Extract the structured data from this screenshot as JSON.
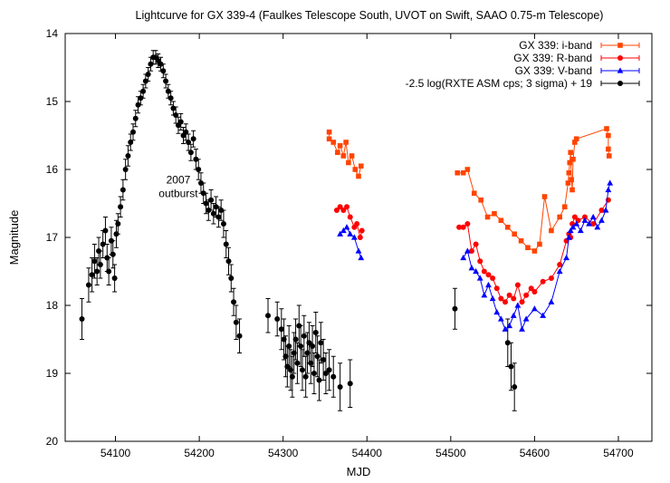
{
  "chart_data": {
    "type": "scatter",
    "title": "Lightcurve for GX 339-4 (Faulkes Telescope South, UVOT on Swift, SAAO 0.75-m Telescope)",
    "xlabel": "MJD",
    "ylabel": "Magnitude",
    "xlim": [
      54040,
      54740
    ],
    "ylim": [
      20,
      14
    ],
    "y_inverted": true,
    "grid": false,
    "legend": "top-right",
    "x_ticks": [
      54100,
      54200,
      54300,
      54400,
      54500,
      54600,
      54700
    ],
    "y_ticks": [
      14,
      15,
      16,
      17,
      18,
      19,
      20
    ],
    "annotation": {
      "line1": "2007",
      "line2": "outburst",
      "x": 54175,
      "y": 16.3
    },
    "series": [
      {
        "name": "GX 339: i-band",
        "color": "#ff4400",
        "marker": "square",
        "connected": true,
        "segments": [
          [
            [
              54355,
              15.45
            ],
            [
              54355,
              15.55
            ],
            [
              54360,
              15.6
            ],
            [
              54365,
              15.75
            ],
            [
              54368,
              15.65
            ],
            [
              54372,
              15.8
            ],
            [
              54375,
              15.6
            ],
            [
              54378,
              15.9
            ],
            [
              54382,
              15.8
            ],
            [
              54386,
              16.0
            ],
            [
              54390,
              16.1
            ],
            [
              54393,
              15.95
            ]
          ],
          [
            [
              54508,
              16.05
            ],
            [
              54515,
              16.05
            ],
            [
              54520,
              16.0
            ],
            [
              54528,
              16.35
            ],
            [
              54536,
              16.45
            ],
            [
              54544,
              16.7
            ],
            [
              54552,
              16.65
            ],
            [
              54560,
              16.75
            ],
            [
              54568,
              16.85
            ],
            [
              54576,
              16.95
            ],
            [
              54584,
              17.05
            ],
            [
              54592,
              17.15
            ],
            [
              54600,
              17.2
            ],
            [
              54606,
              17.1
            ],
            [
              54612,
              16.4
            ],
            [
              54620,
              16.9
            ],
            [
              54630,
              16.7
            ],
            [
              54636,
              16.55
            ],
            [
              54640,
              16.2
            ],
            [
              54641,
              16.05
            ],
            [
              54642,
              15.9
            ],
            [
              54643,
              15.75
            ],
            [
              54644,
              16.15
            ],
            [
              54645,
              16.3
            ],
            [
              54646,
              15.85
            ],
            [
              54648,
              15.6
            ],
            [
              54650,
              15.55
            ],
            [
              54686,
              15.4
            ],
            [
              54688,
              15.5
            ],
            [
              54688,
              15.7
            ],
            [
              54689,
              15.8
            ]
          ]
        ]
      },
      {
        "name": "GX 339: R-band",
        "color": "#ff0000",
        "marker": "circle",
        "connected": true,
        "segments": [
          [
            [
              54364,
              16.6
            ],
            [
              54368,
              16.55
            ],
            [
              54372,
              16.6
            ],
            [
              54376,
              16.55
            ],
            [
              54380,
              16.7
            ],
            [
              54385,
              16.85
            ],
            [
              54388,
              16.8
            ],
            [
              54392,
              17.0
            ],
            [
              54394,
              16.9
            ]
          ],
          [
            [
              54510,
              16.85
            ],
            [
              54515,
              16.85
            ],
            [
              54520,
              16.8
            ],
            [
              54525,
              17.2
            ],
            [
              54530,
              17.1
            ],
            [
              54535,
              17.35
            ],
            [
              54540,
              17.5
            ],
            [
              54545,
              17.55
            ],
            [
              54550,
              17.6
            ],
            [
              54555,
              17.75
            ],
            [
              54560,
              17.9
            ],
            [
              54565,
              17.95
            ],
            [
              54570,
              17.85
            ],
            [
              54575,
              17.9
            ],
            [
              54580,
              17.7
            ],
            [
              54585,
              17.95
            ],
            [
              54590,
              17.85
            ],
            [
              54596,
              17.75
            ],
            [
              54600,
              17.8
            ],
            [
              54610,
              17.65
            ],
            [
              54620,
              17.6
            ],
            [
              54630,
              17.4
            ],
            [
              54638,
              17.05
            ],
            [
              54641,
              16.95
            ],
            [
              54643,
              17.0
            ],
            [
              54645,
              16.8
            ],
            [
              54648,
              16.7
            ],
            [
              54652,
              16.75
            ],
            [
              54660,
              16.7
            ],
            [
              54670,
              16.8
            ],
            [
              54680,
              16.6
            ],
            [
              54688,
              16.45
            ]
          ]
        ]
      },
      {
        "name": "GX 339: V-band",
        "color": "#0000ff",
        "marker": "triangle",
        "connected": true,
        "segments": [
          [
            [
              54368,
              16.95
            ],
            [
              54372,
              16.9
            ],
            [
              54376,
              16.85
            ],
            [
              54380,
              16.95
            ],
            [
              54385,
              17.0
            ],
            [
              54390,
              17.2
            ],
            [
              54393,
              17.3
            ]
          ],
          [
            [
              54515,
              17.3
            ],
            [
              54520,
              17.2
            ],
            [
              54525,
              17.45
            ],
            [
              54530,
              17.5
            ],
            [
              54535,
              17.6
            ],
            [
              54540,
              17.85
            ],
            [
              54545,
              17.7
            ],
            [
              54550,
              17.9
            ],
            [
              54555,
              18.1
            ],
            [
              54560,
              18.2
            ],
            [
              54565,
              18.35
            ],
            [
              54570,
              18.3
            ],
            [
              54575,
              18.15
            ],
            [
              54580,
              18.0
            ],
            [
              54585,
              18.35
            ],
            [
              54590,
              18.2
            ],
            [
              54600,
              18.05
            ],
            [
              54610,
              18.15
            ],
            [
              54620,
              17.95
            ],
            [
              54630,
              17.5
            ],
            [
              54638,
              17.3
            ],
            [
              54641,
              17.0
            ],
            [
              54643,
              16.9
            ],
            [
              54646,
              16.85
            ],
            [
              54650,
              16.8
            ],
            [
              54655,
              16.9
            ],
            [
              54660,
              16.75
            ],
            [
              54665,
              16.8
            ],
            [
              54670,
              16.7
            ],
            [
              54675,
              16.85
            ],
            [
              54680,
              16.75
            ],
            [
              54685,
              16.6
            ],
            [
              54688,
              16.3
            ],
            [
              54690,
              16.2
            ]
          ]
        ]
      },
      {
        "name": "-2.5 log(RXTE ASM cps; 3 sigma) + 19",
        "color": "#000000",
        "marker": "circle",
        "connected": false,
        "points": [
          [
            54060,
            18.2,
            0.3
          ],
          [
            54068,
            17.7,
            0.25
          ],
          [
            54072,
            17.55,
            0.25
          ],
          [
            54075,
            17.35,
            0.25
          ],
          [
            54078,
            17.5,
            0.2
          ],
          [
            54080,
            17.2,
            0.2
          ],
          [
            54082,
            17.4,
            0.2
          ],
          [
            54085,
            17.1,
            0.2
          ],
          [
            54088,
            16.9,
            0.2
          ],
          [
            54090,
            17.3,
            0.2
          ],
          [
            54092,
            17.5,
            0.2
          ],
          [
            54095,
            17.05,
            0.2
          ],
          [
            54097,
            17.25,
            0.2
          ],
          [
            54099,
            17.6,
            0.2
          ],
          [
            54101,
            16.95,
            0.2
          ],
          [
            54103,
            16.8,
            0.15
          ],
          [
            54106,
            16.55,
            0.15
          ],
          [
            54109,
            16.3,
            0.15
          ],
          [
            54112,
            16.0,
            0.15
          ],
          [
            54115,
            15.8,
            0.15
          ],
          [
            54118,
            15.6,
            0.12
          ],
          [
            54121,
            15.45,
            0.12
          ],
          [
            54124,
            15.25,
            0.12
          ],
          [
            54127,
            15.05,
            0.12
          ],
          [
            54130,
            14.95,
            0.1
          ],
          [
            54133,
            14.85,
            0.1
          ],
          [
            54136,
            14.7,
            0.1
          ],
          [
            54139,
            14.6,
            0.1
          ],
          [
            54142,
            14.45,
            0.1
          ],
          [
            54145,
            14.35,
            0.1
          ],
          [
            54148,
            14.35,
            0.1
          ],
          [
            54151,
            14.4,
            0.1
          ],
          [
            54154,
            14.45,
            0.1
          ],
          [
            54157,
            14.55,
            0.1
          ],
          [
            54160,
            14.7,
            0.1
          ],
          [
            54163,
            14.85,
            0.1
          ],
          [
            54166,
            14.95,
            0.1
          ],
          [
            54169,
            15.1,
            0.1
          ],
          [
            54172,
            15.2,
            0.12
          ],
          [
            54175,
            15.35,
            0.12
          ],
          [
            54178,
            15.3,
            0.12
          ],
          [
            54181,
            15.5,
            0.12
          ],
          [
            54184,
            15.45,
            0.12
          ],
          [
            54187,
            15.6,
            0.12
          ],
          [
            54190,
            15.75,
            0.12
          ],
          [
            54193,
            15.55,
            0.12
          ],
          [
            54196,
            15.85,
            0.15
          ],
          [
            54199,
            16.0,
            0.15
          ],
          [
            54202,
            16.2,
            0.15
          ],
          [
            54205,
            16.35,
            0.15
          ],
          [
            54208,
            16.5,
            0.15
          ],
          [
            54211,
            16.6,
            0.15
          ],
          [
            54214,
            16.45,
            0.15
          ],
          [
            54217,
            16.65,
            0.15
          ],
          [
            54220,
            16.55,
            0.15
          ],
          [
            54223,
            16.7,
            0.15
          ],
          [
            54226,
            16.6,
            0.15
          ],
          [
            54229,
            16.8,
            0.2
          ],
          [
            54232,
            17.1,
            0.2
          ],
          [
            54235,
            17.35,
            0.2
          ],
          [
            54238,
            17.6,
            0.2
          ],
          [
            54241,
            17.95,
            0.2
          ],
          [
            54244,
            18.25,
            0.25
          ],
          [
            54248,
            18.45,
            0.25
          ],
          [
            54282,
            18.15,
            0.25
          ],
          [
            54293,
            18.2,
            0.25
          ],
          [
            54298,
            18.35,
            0.3
          ],
          [
            54301,
            18.5,
            0.3
          ],
          [
            54303,
            18.75,
            0.3
          ],
          [
            54305,
            18.9,
            0.3
          ],
          [
            54307,
            18.6,
            0.3
          ],
          [
            54309,
            18.95,
            0.3
          ],
          [
            54311,
            19.05,
            0.3
          ],
          [
            54313,
            18.7,
            0.3
          ],
          [
            54315,
            18.5,
            0.3
          ],
          [
            54317,
            18.85,
            0.3
          ],
          [
            54319,
            18.3,
            0.3
          ],
          [
            54321,
            18.6,
            0.3
          ],
          [
            54323,
            18.95,
            0.3
          ],
          [
            54325,
            18.45,
            0.3
          ],
          [
            54327,
            19.05,
            0.3
          ],
          [
            54329,
            18.7,
            0.3
          ],
          [
            54331,
            18.55,
            0.3
          ],
          [
            54333,
            18.85,
            0.3
          ],
          [
            54335,
            18.6,
            0.3
          ],
          [
            54337,
            19.0,
            0.3
          ],
          [
            54339,
            18.4,
            0.3
          ],
          [
            54341,
            18.75,
            0.3
          ],
          [
            54343,
            19.1,
            0.3
          ],
          [
            54345,
            18.55,
            0.3
          ],
          [
            54348,
            18.8,
            0.3
          ],
          [
            54351,
            19.0,
            0.3
          ],
          [
            54355,
            18.95,
            0.3
          ],
          [
            54360,
            19.05,
            0.3
          ],
          [
            54368,
            19.2,
            0.35
          ],
          [
            54380,
            19.15,
            0.35
          ],
          [
            54505,
            18.05,
            0.3
          ],
          [
            54568,
            18.55,
            0.35
          ],
          [
            54572,
            18.9,
            0.35
          ],
          [
            54576,
            19.2,
            0.35
          ]
        ]
      }
    ]
  }
}
